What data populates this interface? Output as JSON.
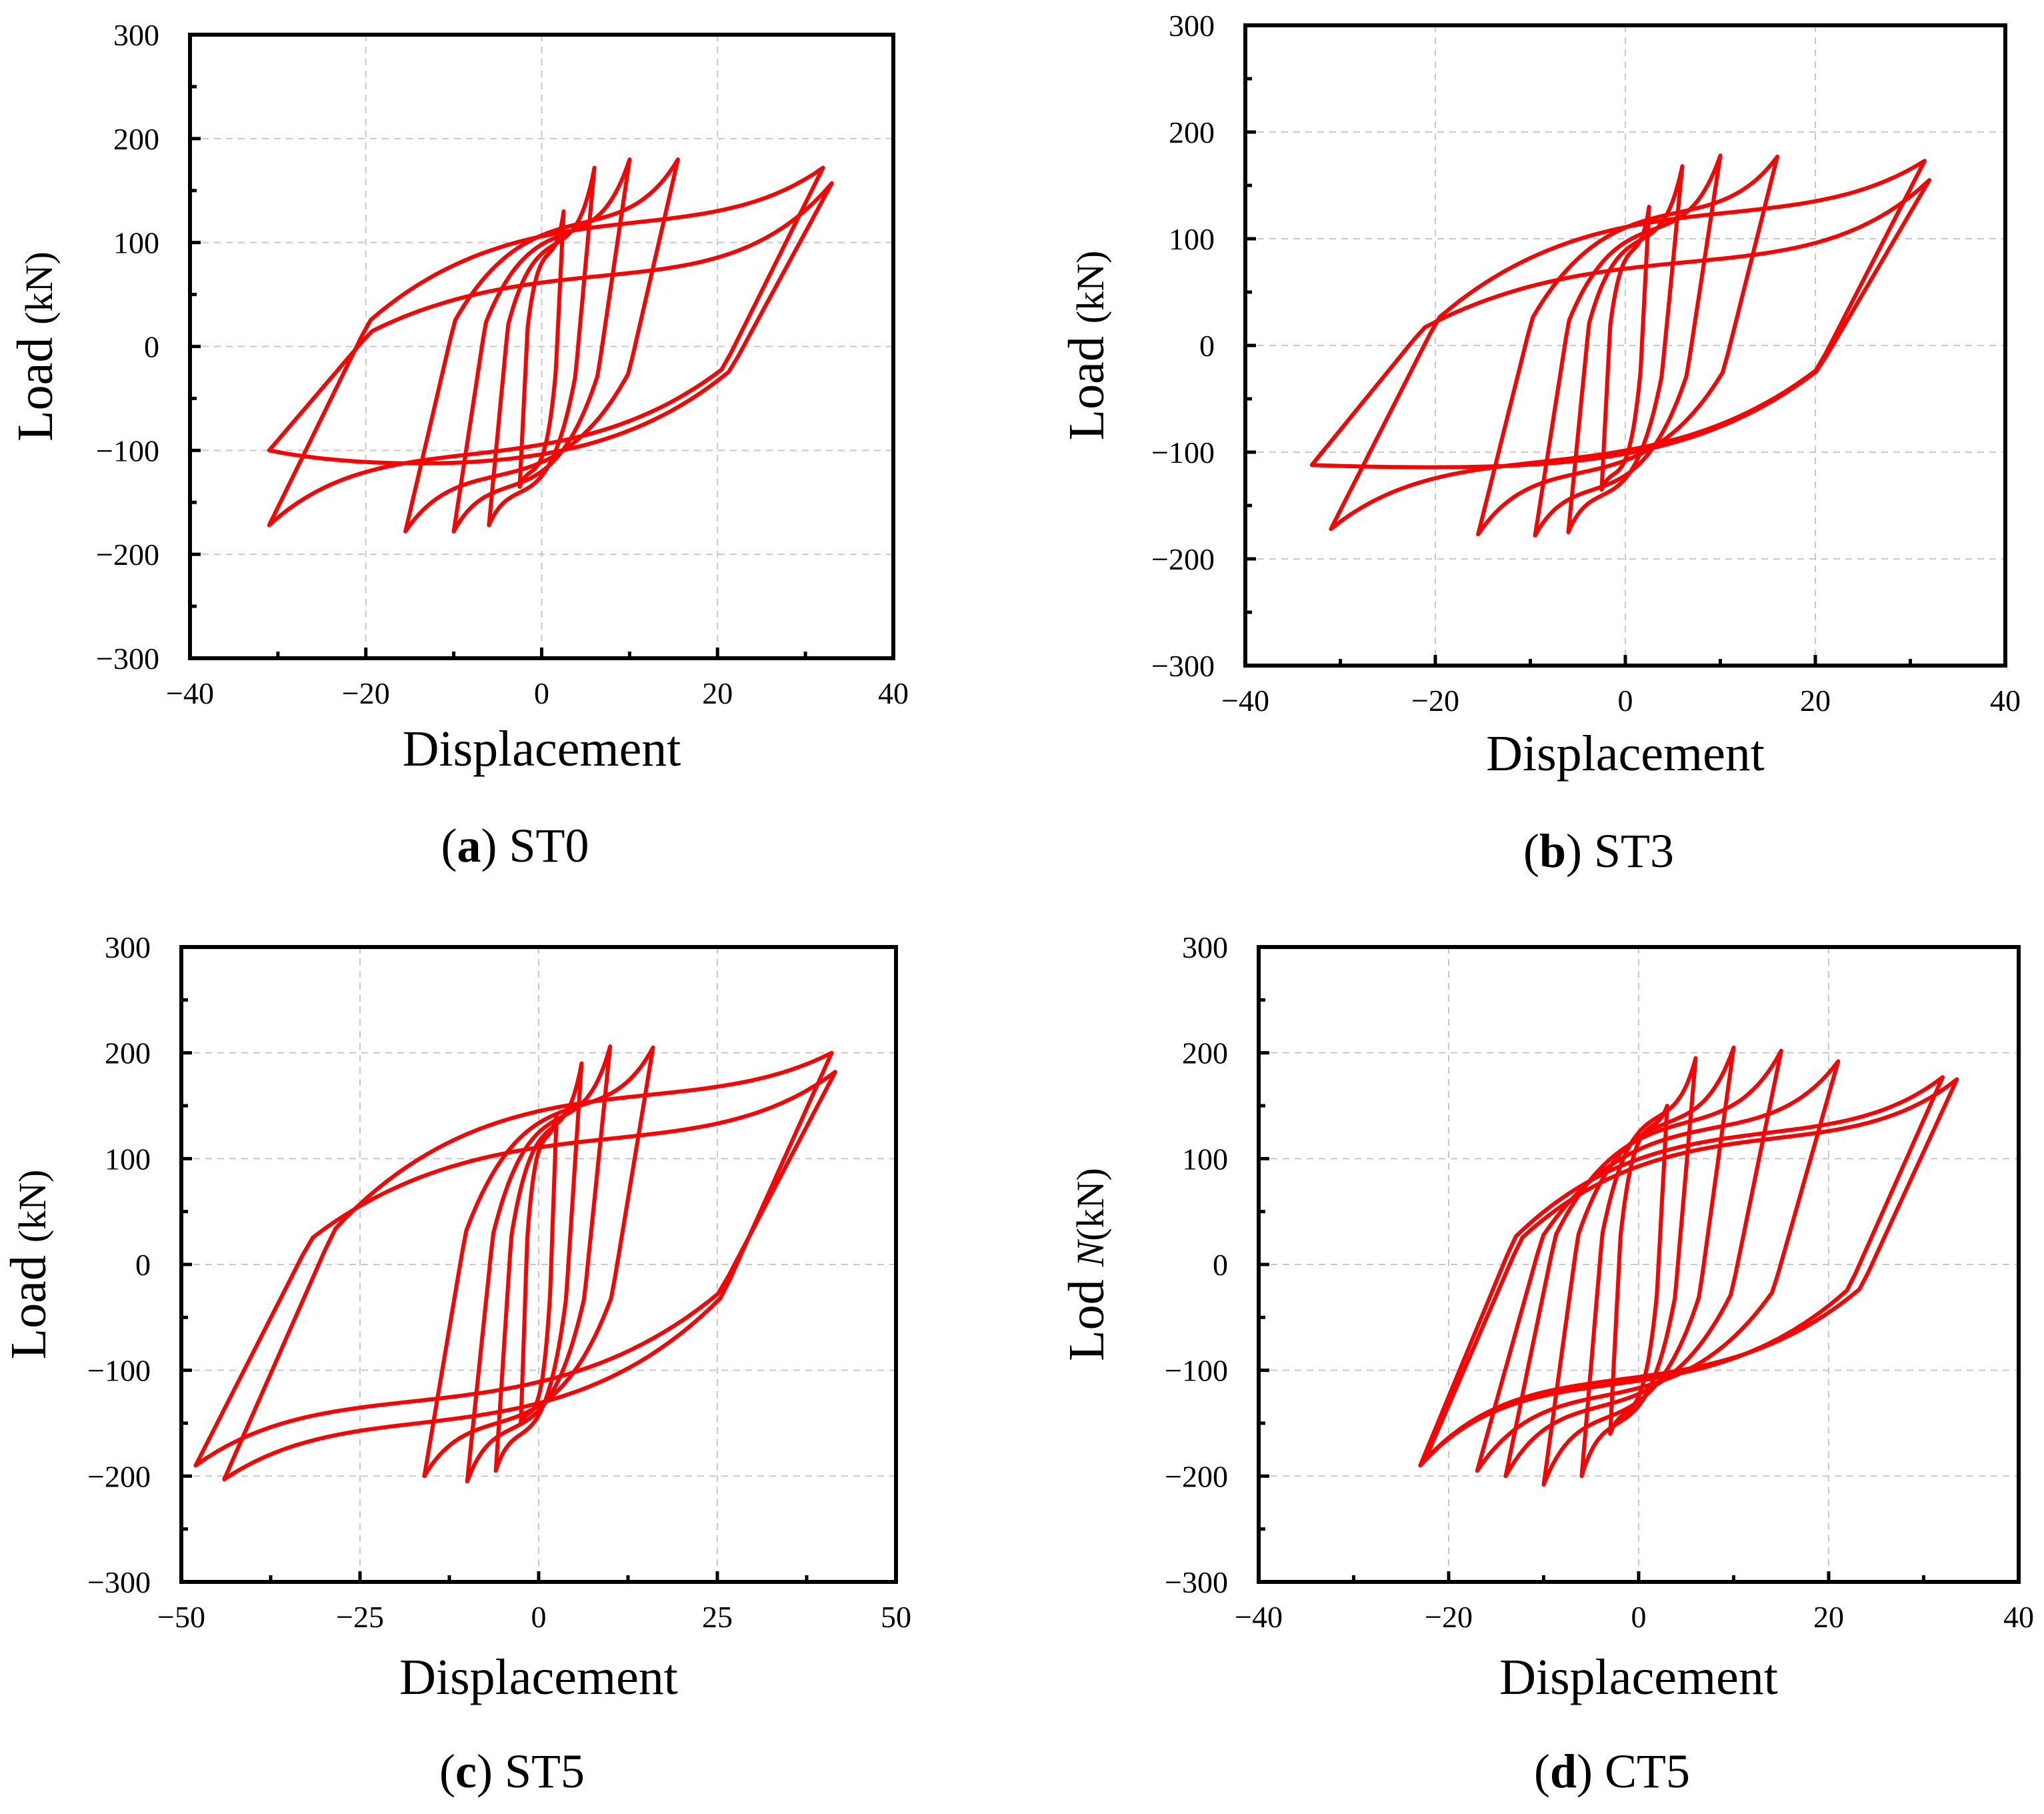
{
  "chart_data": [
    {
      "type": "line",
      "panel_letter": "a",
      "panel_name": "ST0",
      "xlabel": "Displacement",
      "ylabel_main": "Load",
      "ylabel_unit": "(kN)",
      "ylabel_italic": "",
      "xlim": [
        -40,
        40
      ],
      "ylim": [
        -300,
        300
      ],
      "xticks": [
        -40,
        -20,
        0,
        20,
        40
      ],
      "yticks": [
        -300,
        -200,
        -100,
        0,
        100,
        200,
        300
      ],
      "xtick_labels": [
        "−40",
        "−20",
        "0",
        "20",
        "40"
      ],
      "ytick_labels": [
        "−300",
        "−200",
        "−100",
        "0",
        "100",
        "200",
        "300"
      ],
      "grid": true,
      "series": [
        {
          "name": "hysteresis",
          "color": "#ff0000",
          "loops": [
            {
              "amp_pos": 2.5,
              "amp_neg": -2.5,
              "peak_pos": 130,
              "peak_neg": -135,
              "lower_ref": -120,
              "upper_ref": 90
            },
            {
              "amp_pos": 6,
              "amp_neg": -6,
              "peak_pos": 172,
              "peak_neg": -172,
              "lower_ref": -140,
              "upper_ref": 100
            },
            {
              "amp_pos": 10,
              "amp_neg": -10,
              "peak_pos": 180,
              "peak_neg": -178,
              "lower_ref": -135,
              "upper_ref": 110
            },
            {
              "amp_pos": 15.5,
              "amp_neg": -15.5,
              "peak_pos": 180,
              "peak_neg": -178,
              "lower_ref": -125,
              "upper_ref": 120
            },
            {
              "amp_pos": 32,
              "amp_neg": -31,
              "peak_pos": 172,
              "peak_neg": -172,
              "lower_ref": -105,
              "upper_ref": 120
            },
            {
              "amp_pos": 33,
              "amp_neg": -31,
              "peak_pos": 157,
              "peak_neg": -100,
              "lower_ref": -115,
              "upper_ref": 70
            }
          ]
        }
      ]
    },
    {
      "type": "line",
      "panel_letter": "b",
      "panel_name": "ST3",
      "xlabel": "Displacement",
      "ylabel_main": "Load",
      "ylabel_unit": "(kN)",
      "ylabel_italic": "",
      "xlim": [
        -40,
        40
      ],
      "ylim": [
        -300,
        300
      ],
      "xticks": [
        -40,
        -20,
        0,
        20,
        40
      ],
      "yticks": [
        -300,
        -200,
        -100,
        0,
        100,
        200,
        300
      ],
      "xtick_labels": [
        "−40",
        "−20",
        "0",
        "20",
        "40"
      ],
      "ytick_labels": [
        "−300",
        "−200",
        "−100",
        "0",
        "100",
        "200",
        "300"
      ],
      "grid": true,
      "series": [
        {
          "name": "hysteresis",
          "color": "#ff0000",
          "loops": [
            {
              "amp_pos": 2.5,
              "amp_neg": -2.5,
              "peak_pos": 130,
              "peak_neg": -135,
              "lower_ref": -120,
              "upper_ref": 90
            },
            {
              "amp_pos": 6,
              "amp_neg": -6,
              "peak_pos": 168,
              "peak_neg": -175,
              "lower_ref": -140,
              "upper_ref": 100
            },
            {
              "amp_pos": 10,
              "amp_neg": -9.5,
              "peak_pos": 178,
              "peak_neg": -178,
              "lower_ref": -135,
              "upper_ref": 110
            },
            {
              "amp_pos": 16,
              "amp_neg": -15.5,
              "peak_pos": 177,
              "peak_neg": -177,
              "lower_ref": -120,
              "upper_ref": 125
            },
            {
              "amp_pos": 31.5,
              "amp_neg": -31,
              "peak_pos": 173,
              "peak_neg": -172,
              "lower_ref": -110,
              "upper_ref": 125
            },
            {
              "amp_pos": 32,
              "amp_neg": -33,
              "peak_pos": 155,
              "peak_neg": -112,
              "lower_ref": -115,
              "upper_ref": 80
            }
          ]
        }
      ]
    },
    {
      "type": "line",
      "panel_letter": "c",
      "panel_name": "ST5",
      "xlabel": "Displacement",
      "ylabel_main": "Load",
      "ylabel_unit": "(kN)",
      "ylabel_italic": "",
      "xlim": [
        -50,
        50
      ],
      "ylim": [
        -300,
        300
      ],
      "xticks": [
        -50,
        -25,
        0,
        25,
        50
      ],
      "yticks": [
        -300,
        -200,
        -100,
        0,
        100,
        200,
        300
      ],
      "xtick_labels": [
        "−50",
        "−25",
        "0",
        "25",
        "50"
      ],
      "ytick_labels": [
        "−300",
        "−200",
        "−100",
        "0",
        "100",
        "200",
        "300"
      ],
      "grid": true,
      "series": [
        {
          "name": "hysteresis",
          "color": "#ff0000",
          "loops": [
            {
              "amp_pos": 2.5,
              "amp_neg": -2.5,
              "peak_pos": 140,
              "peak_neg": -150,
              "lower_ref": -140,
              "upper_ref": 120
            },
            {
              "amp_pos": 6,
              "amp_neg": -6,
              "peak_pos": 190,
              "peak_neg": -195,
              "lower_ref": -160,
              "upper_ref": 130
            },
            {
              "amp_pos": 10,
              "amp_neg": -10,
              "peak_pos": 206,
              "peak_neg": -205,
              "lower_ref": -155,
              "upper_ref": 140
            },
            {
              "amp_pos": 16,
              "amp_neg": -16,
              "peak_pos": 205,
              "peak_neg": -200,
              "lower_ref": -150,
              "upper_ref": 150
            },
            {
              "amp_pos": 41,
              "amp_neg": -44,
              "peak_pos": 200,
              "peak_neg": -203,
              "lower_ref": -150,
              "upper_ref": 160
            },
            {
              "amp_pos": 41.5,
              "amp_neg": -48,
              "peak_pos": 182,
              "peak_neg": -190,
              "lower_ref": -130,
              "upper_ref": 120
            }
          ]
        }
      ]
    },
    {
      "type": "line",
      "panel_letter": "d",
      "panel_name": "CT5",
      "xlabel": "Displacement",
      "ylabel_main": "Lod",
      "ylabel_unit": "(kN)",
      "ylabel_italic": "N",
      "xlim": [
        -40,
        40
      ],
      "ylim": [
        -300,
        300
      ],
      "xticks": [
        -40,
        -20,
        0,
        20,
        40
      ],
      "yticks": [
        -300,
        -200,
        -100,
        0,
        100,
        200,
        300
      ],
      "xtick_labels": [
        "−40",
        "−20",
        "0",
        "20",
        "40"
      ],
      "ytick_labels": [
        "−300",
        "−200",
        "−100",
        "0",
        "100",
        "200",
        "300"
      ],
      "grid": true,
      "series": [
        {
          "name": "hysteresis",
          "color": "#ff0000",
          "loops": [
            {
              "amp_pos": 3,
              "amp_neg": -3,
              "peak_pos": 150,
              "peak_neg": -160,
              "lower_ref": -140,
              "upper_ref": 130
            },
            {
              "amp_pos": 6,
              "amp_neg": -6,
              "peak_pos": 195,
              "peak_neg": -200,
              "lower_ref": -150,
              "upper_ref": 140
            },
            {
              "amp_pos": 10,
              "amp_neg": -10,
              "peak_pos": 205,
              "peak_neg": -208,
              "lower_ref": -145,
              "upper_ref": 135
            },
            {
              "amp_pos": 15,
              "amp_neg": -14,
              "peak_pos": 202,
              "peak_neg": -200,
              "lower_ref": -135,
              "upper_ref": 135
            },
            {
              "amp_pos": 21,
              "amp_neg": -17,
              "peak_pos": 192,
              "peak_neg": -195,
              "lower_ref": -125,
              "upper_ref": 130
            },
            {
              "amp_pos": 32,
              "amp_neg": -23,
              "peak_pos": 177,
              "peak_neg": -190,
              "lower_ref": -115,
              "upper_ref": 125
            },
            {
              "amp_pos": 33.5,
              "amp_neg": -22.5,
              "peak_pos": 175,
              "peak_neg": -185,
              "lower_ref": -110,
              "upper_ref": 120
            }
          ]
        }
      ]
    }
  ]
}
